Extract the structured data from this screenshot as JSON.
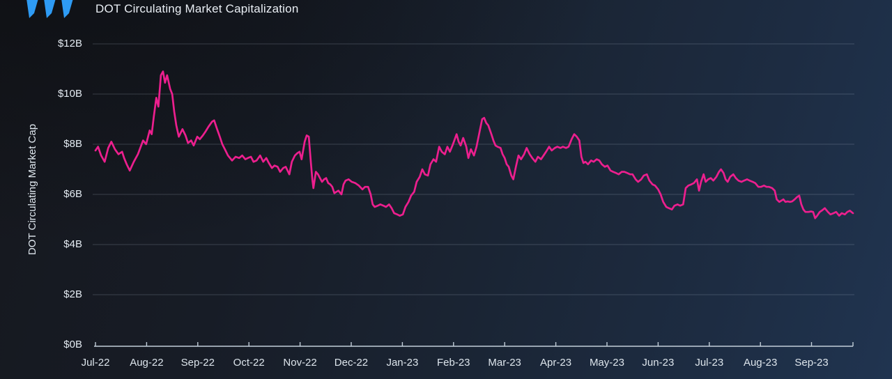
{
  "header": {
    "title": "DOT Circulating Market Capitalization"
  },
  "logo": {
    "name": "messari-logo",
    "color": "#2E9BF4"
  },
  "style": {
    "line_color": "#EC1F8E",
    "grid_color": "rgba(190,207,224,0.22)",
    "axis_color": "#C3CFDA",
    "label_color": "#E3EAF1",
    "background_top_left": "#16181E",
    "background_bottom_right": "#203450"
  },
  "chart_data": {
    "type": "line",
    "title": "DOT Circulating Market Capitalization",
    "xlabel": "",
    "ylabel": "DOT Circulating Market Cap",
    "series_name": "DOT Circulating Market Cap",
    "unit": "USD billions",
    "grid": true,
    "legend_position": "none",
    "ylim": [
      0,
      12
    ],
    "y_ticks": [
      {
        "value": 12,
        "label": "$12B"
      },
      {
        "value": 10,
        "label": "$10B"
      },
      {
        "value": 8,
        "label": "$8B"
      },
      {
        "value": 6,
        "label": "$6B"
      },
      {
        "value": 4,
        "label": "$4B"
      },
      {
        "value": 2,
        "label": "$2B"
      },
      {
        "value": 0,
        "label": "$0B"
      }
    ],
    "x_unit": "months since 2022-07-01 (0 = Jul-22, 14 = Sep-23)",
    "x_range": [
      0,
      14.81
    ],
    "x_tick_labels": [
      "Jul-22",
      "Aug-22",
      "Sep-22",
      "Oct-22",
      "Nov-22",
      "Dec-22",
      "Jan-23",
      "Feb-23",
      "Mar-23",
      "Apr-23",
      "May-23",
      "Jun-23",
      "Jul-23",
      "Aug-23",
      "Sep-23"
    ],
    "points": [
      [
        0.0,
        7.75
      ],
      [
        0.05,
        7.9
      ],
      [
        0.11,
        7.55
      ],
      [
        0.18,
        7.3
      ],
      [
        0.25,
        7.85
      ],
      [
        0.31,
        8.1
      ],
      [
        0.38,
        7.8
      ],
      [
        0.45,
        7.6
      ],
      [
        0.52,
        7.7
      ],
      [
        0.56,
        7.45
      ],
      [
        0.61,
        7.2
      ],
      [
        0.67,
        6.95
      ],
      [
        0.75,
        7.3
      ],
      [
        0.83,
        7.6
      ],
      [
        0.93,
        8.15
      ],
      [
        0.99,
        8.0
      ],
      [
        1.06,
        8.55
      ],
      [
        1.1,
        8.4
      ],
      [
        1.14,
        9.1
      ],
      [
        1.19,
        9.85
      ],
      [
        1.23,
        9.5
      ],
      [
        1.28,
        10.75
      ],
      [
        1.32,
        10.9
      ],
      [
        1.36,
        10.45
      ],
      [
        1.4,
        10.75
      ],
      [
        1.46,
        10.2
      ],
      [
        1.5,
        10.0
      ],
      [
        1.54,
        9.3
      ],
      [
        1.58,
        8.75
      ],
      [
        1.63,
        8.3
      ],
      [
        1.7,
        8.6
      ],
      [
        1.76,
        8.35
      ],
      [
        1.81,
        8.05
      ],
      [
        1.87,
        8.15
      ],
      [
        1.92,
        7.95
      ],
      [
        1.99,
        8.3
      ],
      [
        2.04,
        8.2
      ],
      [
        2.1,
        8.35
      ],
      [
        2.15,
        8.5
      ],
      [
        2.21,
        8.7
      ],
      [
        2.28,
        8.9
      ],
      [
        2.32,
        8.95
      ],
      [
        2.37,
        8.65
      ],
      [
        2.43,
        8.3
      ],
      [
        2.48,
        8.0
      ],
      [
        2.53,
        7.8
      ],
      [
        2.59,
        7.55
      ],
      [
        2.67,
        7.35
      ],
      [
        2.74,
        7.5
      ],
      [
        2.81,
        7.45
      ],
      [
        2.87,
        7.55
      ],
      [
        2.93,
        7.4
      ],
      [
        2.98,
        7.45
      ],
      [
        3.04,
        7.5
      ],
      [
        3.09,
        7.3
      ],
      [
        3.15,
        7.35
      ],
      [
        3.22,
        7.55
      ],
      [
        3.28,
        7.3
      ],
      [
        3.34,
        7.45
      ],
      [
        3.39,
        7.25
      ],
      [
        3.45,
        7.05
      ],
      [
        3.5,
        7.15
      ],
      [
        3.56,
        7.1
      ],
      [
        3.61,
        6.9
      ],
      [
        3.67,
        7.05
      ],
      [
        3.72,
        7.1
      ],
      [
        3.79,
        6.8
      ],
      [
        3.84,
        7.3
      ],
      [
        3.9,
        7.55
      ],
      [
        3.95,
        7.65
      ],
      [
        3.99,
        7.7
      ],
      [
        4.03,
        7.4
      ],
      [
        4.09,
        8.1
      ],
      [
        4.13,
        8.35
      ],
      [
        4.17,
        8.3
      ],
      [
        4.21,
        7.3
      ],
      [
        4.24,
        6.6
      ],
      [
        4.26,
        6.25
      ],
      [
        4.31,
        6.9
      ],
      [
        4.35,
        6.8
      ],
      [
        4.39,
        6.65
      ],
      [
        4.43,
        6.5
      ],
      [
        4.47,
        6.6
      ],
      [
        4.51,
        6.65
      ],
      [
        4.55,
        6.45
      ],
      [
        4.59,
        6.4
      ],
      [
        4.63,
        6.3
      ],
      [
        4.67,
        6.05
      ],
      [
        4.71,
        6.1
      ],
      [
        4.75,
        6.15
      ],
      [
        4.81,
        6.0
      ],
      [
        4.85,
        6.4
      ],
      [
        4.89,
        6.55
      ],
      [
        4.95,
        6.6
      ],
      [
        5.01,
        6.5
      ],
      [
        5.08,
        6.45
      ],
      [
        5.15,
        6.35
      ],
      [
        5.22,
        6.2
      ],
      [
        5.27,
        6.3
      ],
      [
        5.33,
        6.3
      ],
      [
        5.38,
        6.0
      ],
      [
        5.42,
        5.6
      ],
      [
        5.46,
        5.5
      ],
      [
        5.52,
        5.55
      ],
      [
        5.57,
        5.6
      ],
      [
        5.63,
        5.55
      ],
      [
        5.68,
        5.5
      ],
      [
        5.74,
        5.6
      ],
      [
        5.79,
        5.45
      ],
      [
        5.84,
        5.25
      ],
      [
        5.9,
        5.2
      ],
      [
        5.95,
        5.15
      ],
      [
        6.01,
        5.2
      ],
      [
        6.06,
        5.5
      ],
      [
        6.12,
        5.7
      ],
      [
        6.17,
        5.95
      ],
      [
        6.23,
        6.1
      ],
      [
        6.28,
        6.5
      ],
      [
        6.34,
        6.7
      ],
      [
        6.39,
        7.0
      ],
      [
        6.44,
        6.8
      ],
      [
        6.5,
        6.75
      ],
      [
        6.55,
        7.2
      ],
      [
        6.61,
        7.4
      ],
      [
        6.66,
        7.3
      ],
      [
        6.72,
        7.9
      ],
      [
        6.77,
        7.7
      ],
      [
        6.83,
        7.6
      ],
      [
        6.88,
        7.9
      ],
      [
        6.93,
        7.7
      ],
      [
        6.99,
        8.0
      ],
      [
        7.06,
        8.4
      ],
      [
        7.1,
        8.1
      ],
      [
        7.14,
        7.95
      ],
      [
        7.19,
        8.25
      ],
      [
        7.25,
        7.9
      ],
      [
        7.29,
        7.45
      ],
      [
        7.34,
        7.8
      ],
      [
        7.4,
        7.55
      ],
      [
        7.45,
        7.9
      ],
      [
        7.51,
        8.5
      ],
      [
        7.56,
        9.0
      ],
      [
        7.6,
        9.05
      ],
      [
        7.64,
        8.85
      ],
      [
        7.68,
        8.75
      ],
      [
        7.74,
        8.4
      ],
      [
        7.78,
        8.15
      ],
      [
        7.82,
        7.95
      ],
      [
        7.86,
        7.9
      ],
      [
        7.92,
        7.85
      ],
      [
        7.96,
        7.6
      ],
      [
        8.0,
        7.45
      ],
      [
        8.04,
        7.2
      ],
      [
        8.08,
        7.1
      ],
      [
        8.13,
        6.75
      ],
      [
        8.17,
        6.6
      ],
      [
        8.22,
        7.1
      ],
      [
        8.27,
        7.55
      ],
      [
        8.32,
        7.4
      ],
      [
        8.38,
        7.6
      ],
      [
        8.43,
        7.85
      ],
      [
        8.49,
        7.6
      ],
      [
        8.54,
        7.45
      ],
      [
        8.6,
        7.3
      ],
      [
        8.65,
        7.5
      ],
      [
        8.71,
        7.4
      ],
      [
        8.76,
        7.55
      ],
      [
        8.81,
        7.7
      ],
      [
        8.87,
        7.9
      ],
      [
        8.92,
        7.75
      ],
      [
        8.98,
        7.85
      ],
      [
        9.03,
        7.9
      ],
      [
        9.09,
        7.85
      ],
      [
        9.14,
        7.9
      ],
      [
        9.2,
        7.85
      ],
      [
        9.25,
        7.9
      ],
      [
        9.31,
        8.2
      ],
      [
        9.36,
        8.4
      ],
      [
        9.41,
        8.3
      ],
      [
        9.46,
        8.15
      ],
      [
        9.5,
        7.5
      ],
      [
        9.54,
        7.25
      ],
      [
        9.58,
        7.3
      ],
      [
        9.63,
        7.2
      ],
      [
        9.69,
        7.35
      ],
      [
        9.74,
        7.3
      ],
      [
        9.8,
        7.4
      ],
      [
        9.85,
        7.35
      ],
      [
        9.9,
        7.2
      ],
      [
        9.96,
        7.1
      ],
      [
        10.01,
        7.15
      ],
      [
        10.07,
        6.95
      ],
      [
        10.12,
        6.9
      ],
      [
        10.18,
        6.85
      ],
      [
        10.23,
        6.8
      ],
      [
        10.29,
        6.9
      ],
      [
        10.34,
        6.9
      ],
      [
        10.4,
        6.85
      ],
      [
        10.45,
        6.8
      ],
      [
        10.5,
        6.8
      ],
      [
        10.56,
        6.6
      ],
      [
        10.61,
        6.5
      ],
      [
        10.67,
        6.6
      ],
      [
        10.72,
        6.75
      ],
      [
        10.78,
        6.8
      ],
      [
        10.83,
        6.55
      ],
      [
        10.89,
        6.4
      ],
      [
        10.94,
        6.35
      ],
      [
        11.0,
        6.2
      ],
      [
        11.05,
        6.0
      ],
      [
        11.1,
        5.7
      ],
      [
        11.16,
        5.5
      ],
      [
        11.21,
        5.45
      ],
      [
        11.27,
        5.4
      ],
      [
        11.32,
        5.55
      ],
      [
        11.38,
        5.6
      ],
      [
        11.43,
        5.55
      ],
      [
        11.49,
        5.6
      ],
      [
        11.54,
        6.25
      ],
      [
        11.59,
        6.35
      ],
      [
        11.65,
        6.4
      ],
      [
        11.7,
        6.45
      ],
      [
        11.76,
        6.6
      ],
      [
        11.8,
        6.15
      ],
      [
        11.84,
        6.5
      ],
      [
        11.89,
        6.8
      ],
      [
        11.93,
        6.5
      ],
      [
        11.98,
        6.6
      ],
      [
        12.03,
        6.65
      ],
      [
        12.08,
        6.55
      ],
      [
        12.14,
        6.7
      ],
      [
        12.19,
        6.9
      ],
      [
        12.23,
        7.0
      ],
      [
        12.28,
        6.85
      ],
      [
        12.32,
        6.6
      ],
      [
        12.36,
        6.5
      ],
      [
        12.41,
        6.7
      ],
      [
        12.47,
        6.8
      ],
      [
        12.52,
        6.65
      ],
      [
        12.57,
        6.55
      ],
      [
        12.63,
        6.5
      ],
      [
        12.68,
        6.55
      ],
      [
        12.74,
        6.6
      ],
      [
        12.79,
        6.55
      ],
      [
        12.85,
        6.5
      ],
      [
        12.9,
        6.45
      ],
      [
        12.96,
        6.3
      ],
      [
        13.01,
        6.3
      ],
      [
        13.07,
        6.35
      ],
      [
        13.12,
        6.3
      ],
      [
        13.17,
        6.3
      ],
      [
        13.23,
        6.25
      ],
      [
        13.28,
        6.15
      ],
      [
        13.32,
        5.8
      ],
      [
        13.37,
        5.7
      ],
      [
        13.41,
        5.75
      ],
      [
        13.45,
        5.8
      ],
      [
        13.49,
        5.7
      ],
      [
        13.53,
        5.72
      ],
      [
        13.58,
        5.7
      ],
      [
        13.62,
        5.72
      ],
      [
        13.67,
        5.8
      ],
      [
        13.72,
        5.9
      ],
      [
        13.76,
        5.95
      ],
      [
        13.8,
        5.6
      ],
      [
        13.84,
        5.4
      ],
      [
        13.88,
        5.3
      ],
      [
        13.94,
        5.3
      ],
      [
        13.99,
        5.32
      ],
      [
        14.03,
        5.3
      ],
      [
        14.07,
        5.05
      ],
      [
        14.11,
        5.15
      ],
      [
        14.16,
        5.3
      ],
      [
        14.21,
        5.37
      ],
      [
        14.26,
        5.45
      ],
      [
        14.32,
        5.3
      ],
      [
        14.37,
        5.2
      ],
      [
        14.43,
        5.25
      ],
      [
        14.48,
        5.3
      ],
      [
        14.54,
        5.15
      ],
      [
        14.59,
        5.25
      ],
      [
        14.65,
        5.2
      ],
      [
        14.7,
        5.3
      ],
      [
        14.75,
        5.35
      ],
      [
        14.81,
        5.25
      ]
    ]
  }
}
